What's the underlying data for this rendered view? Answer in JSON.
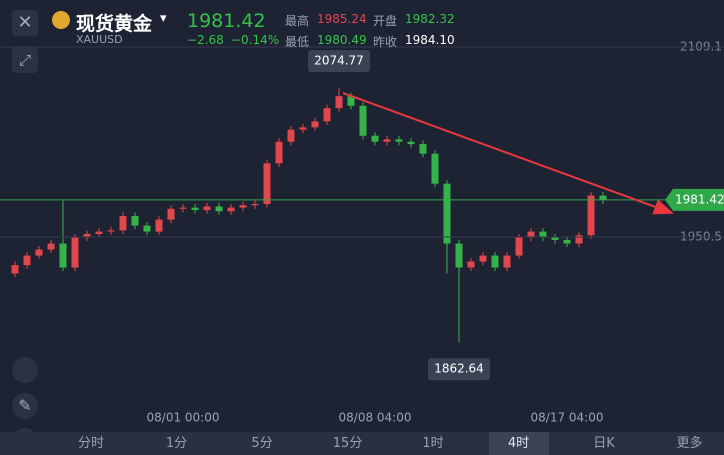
{
  "quote": {
    "name": "现货黄金",
    "symbol": "XAUUSD",
    "price": "1981.42",
    "change": "−2.68",
    "change_pct": "−0.14%",
    "fields": [
      {
        "label": "最高",
        "value": "1985.24"
      },
      {
        "label": "开盘",
        "value": "1982.32"
      },
      {
        "label": "最低",
        "value": "1980.49"
      },
      {
        "label": "昨收",
        "value": "1984.10"
      }
    ]
  },
  "tabs": [
    "分时",
    "1分",
    "5分",
    "15分",
    "1时",
    "4时",
    "日K",
    "更多"
  ],
  "chart_data": {
    "type": "candlestick",
    "up_color": "#e2474b",
    "down_color": "#35b44a",
    "last_price": 1981.42,
    "ylim": [
      1789.4,
      2114.9
    ],
    "yticks": [
      2109.1,
      1950.5
    ],
    "grid": true,
    "categories": [
      null,
      null,
      null,
      null,
      null,
      null,
      null,
      null,
      null,
      null,
      null,
      null,
      null,
      null,
      "08/01 00:00",
      null,
      null,
      null,
      null,
      null,
      null,
      null,
      null,
      null,
      null,
      null,
      null,
      null,
      null,
      null,
      "08/08 04:00",
      null,
      null,
      null,
      null,
      null,
      null,
      null,
      null,
      null,
      null,
      null,
      null,
      null,
      null,
      null,
      "08/17 04:00",
      null,
      null,
      null
    ],
    "open": [
      1920,
      1927,
      1935,
      1940,
      1945,
      1925,
      1950,
      1953,
      1955,
      1956,
      1968,
      1960,
      1955,
      1965,
      1974,
      1975,
      1973,
      1976,
      1972,
      1975,
      1977,
      1978,
      2012,
      2030,
      2040,
      2042,
      2047,
      2058,
      2068,
      2060,
      2035,
      2030,
      2032,
      2030,
      2028,
      2020,
      1995,
      1945,
      1925,
      1930,
      1935,
      1925,
      1935,
      1950,
      1955,
      1950,
      1948,
      1945,
      1952,
      1985
    ],
    "close": [
      1927,
      1935,
      1940,
      1945,
      1925,
      1950,
      1953,
      1955,
      1956,
      1968,
      1960,
      1955,
      1965,
      1974,
      1975,
      1973,
      1976,
      1972,
      1975,
      1977,
      1978,
      2012,
      2030,
      2040,
      2042,
      2047,
      2058,
      2068,
      2060,
      2035,
      2030,
      2032,
      2030,
      2028,
      2020,
      1995,
      1945,
      1925,
      1930,
      1935,
      1925,
      1935,
      1950,
      1955,
      1950,
      1948,
      1945,
      1952,
      1985,
      1981.42
    ],
    "high": [
      1930,
      1938,
      1943,
      1948,
      1981,
      1953,
      1956,
      1958,
      1959,
      1971,
      1971,
      1963,
      1968,
      1977,
      1978,
      1978,
      1979,
      1979,
      1978,
      1980,
      1981,
      2015,
      2033,
      2043,
      2045,
      2050,
      2061,
      2074.77,
      2071,
      2063,
      2038,
      2035,
      2035,
      2033,
      2031,
      2023,
      1998,
      1948,
      1933,
      1938,
      1938,
      1938,
      1953,
      1958,
      1958,
      1953,
      1951,
      1955,
      1988,
      1988
    ],
    "low": [
      1917,
      1924,
      1932,
      1937,
      1922,
      1922,
      1947,
      1950,
      1952,
      1953,
      1957,
      1952,
      1952,
      1962,
      1971,
      1970,
      1970,
      1969,
      1969,
      1972,
      1974,
      1975,
      2009,
      2027,
      2037,
      2039,
      2044,
      2055,
      2057,
      2032,
      2027,
      2027,
      2027,
      2025,
      2017,
      1992,
      1920,
      1862.64,
      1922,
      1927,
      1922,
      1922,
      1932,
      1947,
      1947,
      1945,
      1942,
      1942,
      1949,
      1978
    ]
  }
}
